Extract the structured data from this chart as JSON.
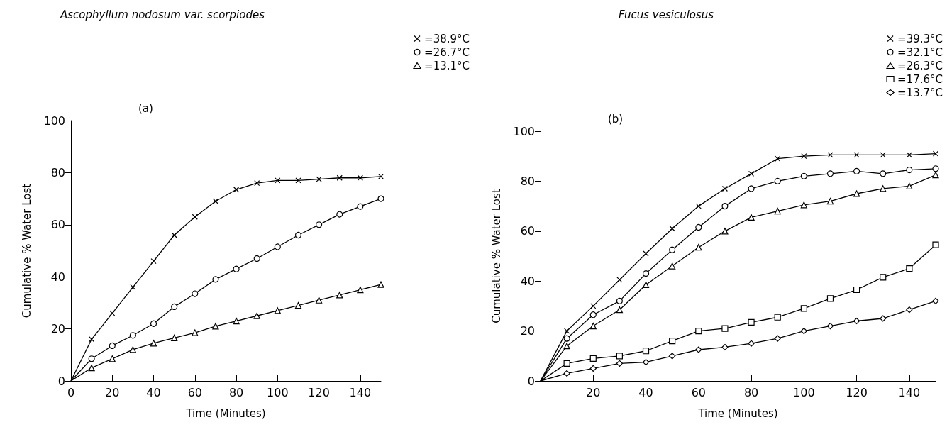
{
  "chart_data": [
    {
      "type": "line",
      "title": "Ascophyllum nodosum var. scorpiodes",
      "xlabel": "Time (Minutes)",
      "ylabel": "Cumulative % Water Lost",
      "annotations": [
        "(a)"
      ],
      "x": [
        0,
        10,
        20,
        30,
        40,
        50,
        60,
        70,
        80,
        90,
        100,
        110,
        120,
        130,
        140,
        150
      ],
      "xlim": [
        0,
        150
      ],
      "xticks": [
        0,
        20,
        40,
        60,
        80,
        100,
        120,
        140
      ],
      "ylim": [
        0,
        100
      ],
      "yticks": [
        0,
        20,
        40,
        60,
        80,
        100
      ],
      "grid": false,
      "legend": "top right",
      "line_style": "solid",
      "series": [
        {
          "name": "=38.9°C",
          "color": "#000000",
          "marker": "cross",
          "values": [
            0,
            16,
            26,
            36,
            46,
            56,
            63,
            69,
            73.5,
            76,
            77,
            77,
            77.5,
            78,
            78,
            78.5
          ]
        },
        {
          "name": "=26.7°C",
          "color": "#000000",
          "marker": "circle",
          "values": [
            0,
            8.5,
            13.5,
            17.5,
            22,
            28.5,
            33.5,
            39,
            43,
            47,
            51.5,
            56,
            60,
            64,
            67,
            70
          ]
        },
        {
          "name": "=13.1°C",
          "color": "#000000",
          "marker": "triangle",
          "values": [
            0,
            5,
            8.5,
            12,
            14.5,
            16.5,
            18.5,
            21,
            23,
            25,
            27,
            29,
            31,
            33,
            35,
            37
          ]
        }
      ]
    },
    {
      "type": "line",
      "title": "Fucus vesiculosus",
      "xlabel": "Time (Minutes)",
      "ylabel": "Cumulative % Water Lost",
      "annotations": [
        "(b)"
      ],
      "x": [
        0,
        10,
        20,
        30,
        40,
        50,
        60,
        70,
        80,
        90,
        100,
        110,
        120,
        130,
        140,
        150
      ],
      "xlim": [
        0,
        150
      ],
      "xticks": [
        20,
        40,
        60,
        80,
        100,
        120,
        140
      ],
      "ylim": [
        0,
        100
      ],
      "yticks": [
        0,
        20,
        40,
        60,
        80,
        100
      ],
      "grid": false,
      "legend": "top right",
      "line_style": "solid",
      "series": [
        {
          "name": "=39.3°C",
          "color": "#000000",
          "marker": "cross",
          "values": [
            0,
            20,
            30,
            40.5,
            51,
            61,
            70,
            77,
            83,
            89,
            90,
            90.5,
            90.5,
            90.5,
            90.5,
            91
          ]
        },
        {
          "name": "=32.1°C",
          "color": "#000000",
          "marker": "circle",
          "values": [
            0,
            17,
            26.5,
            32,
            43,
            52.5,
            61.5,
            70,
            77,
            80,
            82,
            83,
            84,
            83,
            84.5,
            85
          ]
        },
        {
          "name": "=26.3°C",
          "color": "#000000",
          "marker": "triangle",
          "values": [
            0,
            14,
            22,
            28.5,
            38.5,
            46,
            53.5,
            60,
            65.5,
            68,
            70.5,
            72,
            75,
            77,
            78,
            82.5
          ]
        },
        {
          "name": "=17.6°C",
          "color": "#000000",
          "marker": "square",
          "values": [
            0,
            7,
            9,
            10,
            12,
            16,
            20,
            21,
            23.5,
            25.5,
            29,
            33,
            36.5,
            41.5,
            45,
            54.5
          ]
        },
        {
          "name": "=13.7°C",
          "color": "#000000",
          "marker": "diamond",
          "values": [
            0,
            3,
            5,
            7,
            7.5,
            10,
            12.5,
            13.5,
            15,
            17,
            20,
            22,
            24,
            25,
            28.5,
            32
          ]
        }
      ]
    }
  ]
}
